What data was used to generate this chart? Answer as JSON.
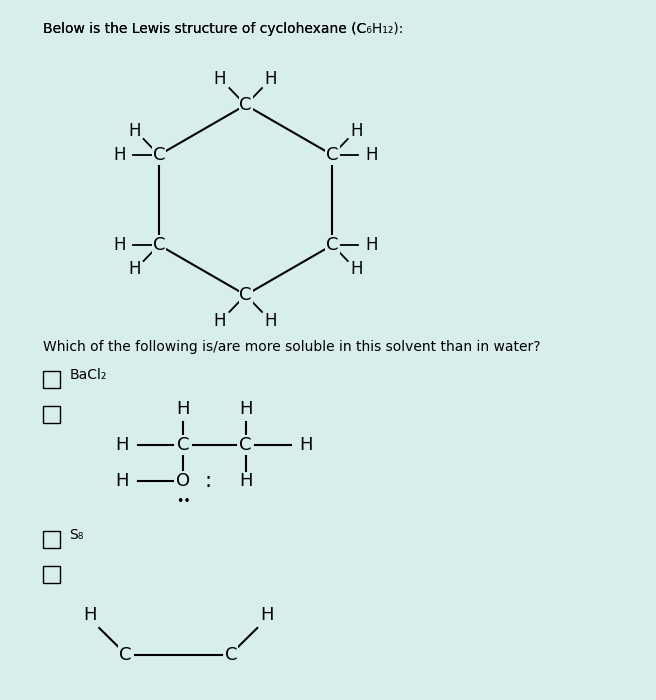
{
  "title_text": "Below is the Lewis structure of cyclohexane (C₆H₁₂):",
  "bg_color": "#d8eeec",
  "text_color": "#000000",
  "font_size_title": 10,
  "font_size_structure": 13,
  "font_size_label": 11,
  "question_text": "Which of the following is/are more soluble in this solvent than in water?",
  "option1_label": "BaCl₂",
  "option2_label": "S₈",
  "checkbox_size": 9
}
